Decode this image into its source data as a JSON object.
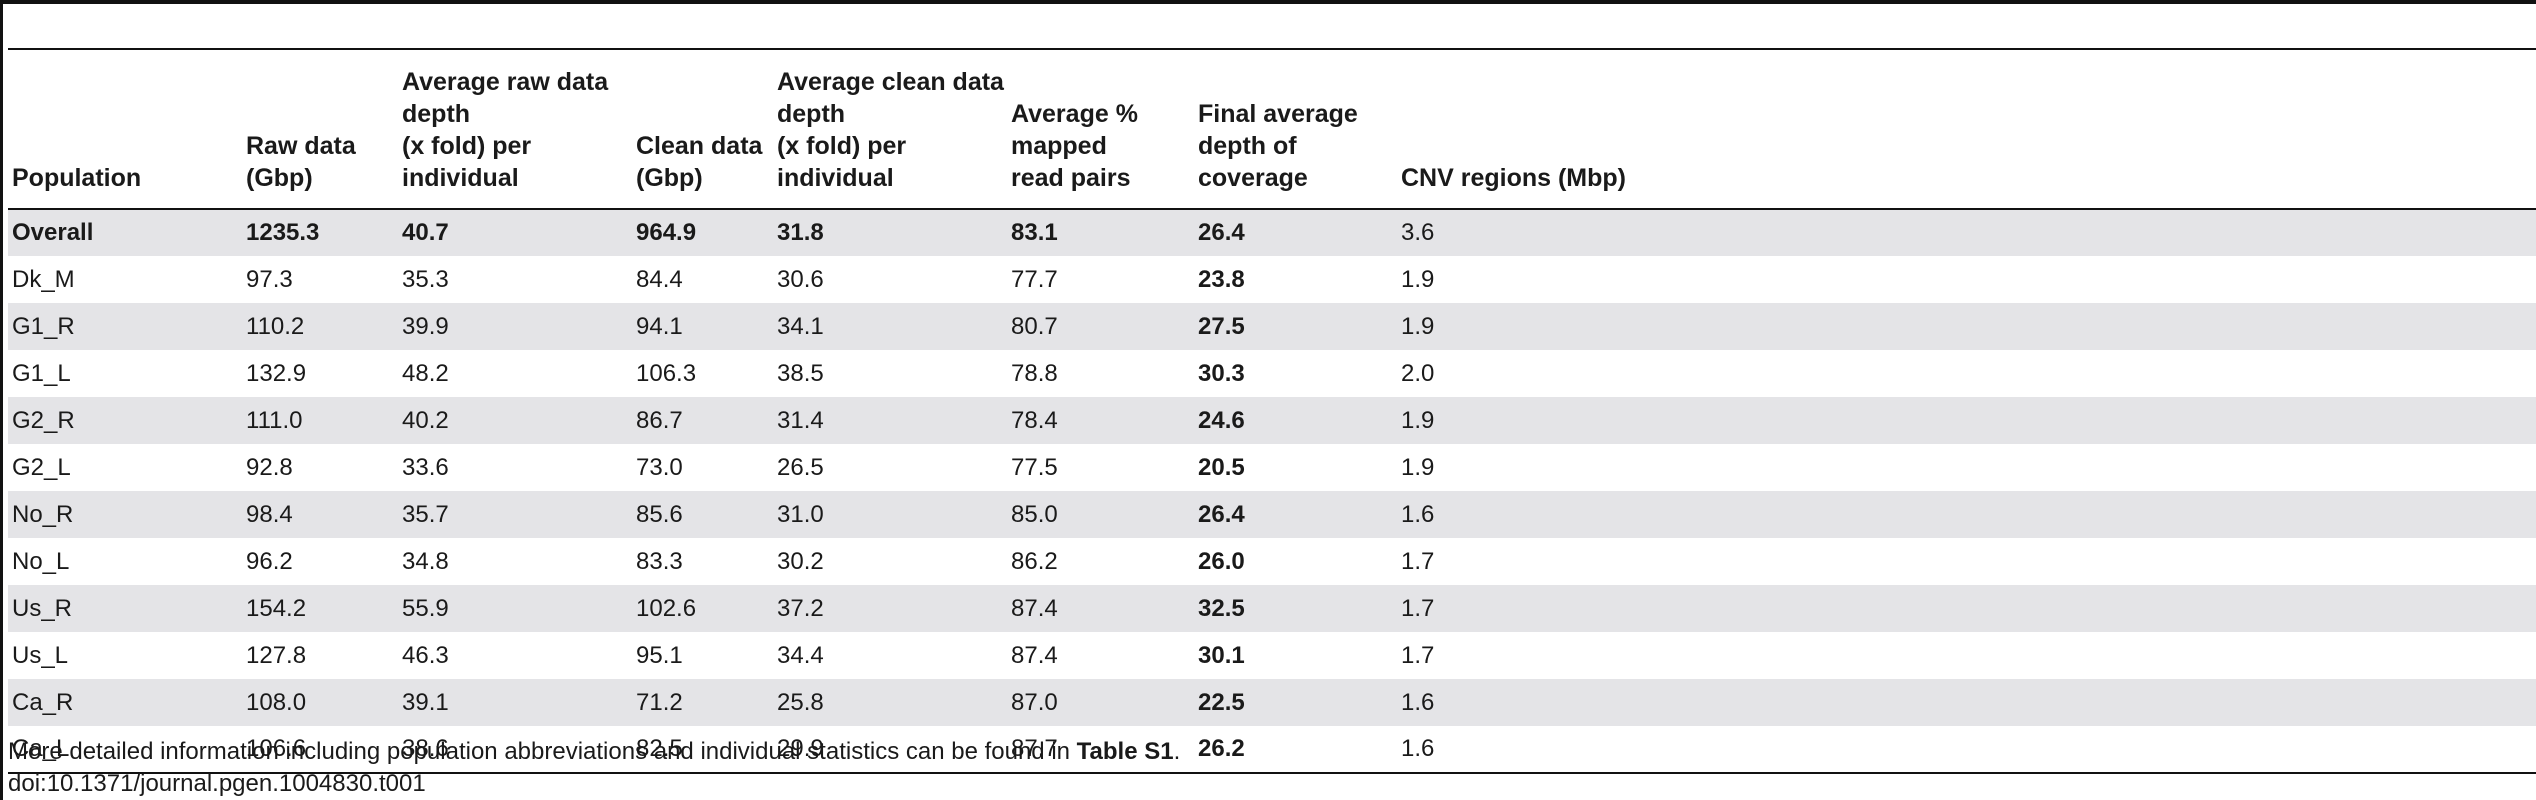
{
  "table": {
    "headers": [
      [
        "Population"
      ],
      [
        "Raw data (Gbp)"
      ],
      [
        "Average raw data depth",
        "(x fold) per individual"
      ],
      [
        "Clean data",
        "(Gbp)"
      ],
      [
        "Average clean data depth",
        "(x fold) per individual"
      ],
      [
        "Average % mapped",
        "read pairs"
      ],
      [
        "Final average",
        "depth of coverage"
      ],
      [
        "CNV regions (Mbp)"
      ]
    ],
    "rows": [
      [
        "Overall",
        "1235.3",
        "40.7",
        "964.9",
        "31.8",
        "83.1",
        "26.4",
        "3.6"
      ],
      [
        "Dk_M",
        "97.3",
        "35.3",
        "84.4",
        "30.6",
        "77.7",
        "23.8",
        "1.9"
      ],
      [
        "G1_R",
        "110.2",
        "39.9",
        "94.1",
        "34.1",
        "80.7",
        "27.5",
        "1.9"
      ],
      [
        "G1_L",
        "132.9",
        "48.2",
        "106.3",
        "38.5",
        "78.8",
        "30.3",
        "2.0"
      ],
      [
        "G2_R",
        "111.0",
        "40.2",
        "86.7",
        "31.4",
        "78.4",
        "24.6",
        "1.9"
      ],
      [
        "G2_L",
        "92.8",
        "33.6",
        "73.0",
        "26.5",
        "77.5",
        "20.5",
        "1.9"
      ],
      [
        "No_R",
        "98.4",
        "35.7",
        "85.6",
        "31.0",
        "85.0",
        "26.4",
        "1.6"
      ],
      [
        "No_L",
        "96.2",
        "34.8",
        "83.3",
        "30.2",
        "86.2",
        "26.0",
        "1.7"
      ],
      [
        "Us_R",
        "154.2",
        "55.9",
        "102.6",
        "37.2",
        "87.4",
        "32.5",
        "1.7"
      ],
      [
        "Us_L",
        "127.8",
        "46.3",
        "95.1",
        "34.4",
        "87.4",
        "30.1",
        "1.7"
      ],
      [
        "Ca_R",
        "108.0",
        "39.1",
        "71.2",
        "25.8",
        "87.0",
        "22.5",
        "1.6"
      ],
      [
        "Ca_L",
        "106.6",
        "38.6",
        "82.5",
        "29.9",
        "87.7",
        "26.2",
        "1.6"
      ]
    ]
  },
  "footnote": {
    "text": "More detailed information including population abbreviations and individual statistics can be found in ",
    "ref": "Table S1",
    "end": "."
  },
  "doi": "doi:10.1371/journal.pgen.1004830.t001"
}
